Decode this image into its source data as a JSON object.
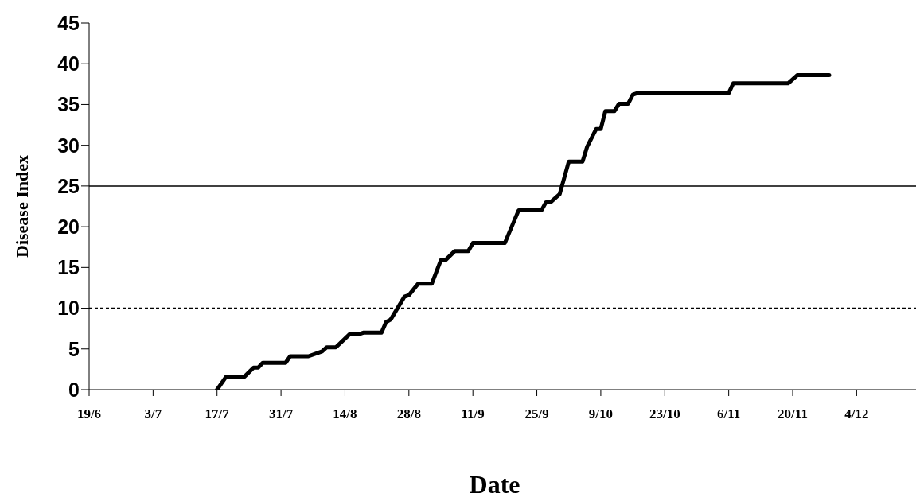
{
  "chart_data": {
    "type": "line",
    "xlabel": "Date",
    "ylabel": "Disease Index",
    "x": [
      "--07-17",
      "--07-19",
      "--07-23",
      "--07-25",
      "--07-26",
      "--07-27",
      "--08-01",
      "--08-02",
      "--08-06",
      "--08-09",
      "--08-10",
      "--08-12",
      "--08-15",
      "--08-17",
      "--08-18",
      "--08-22",
      "--08-23",
      "--08-24",
      "--08-27",
      "--08-28",
      "--08-30",
      "--09-02",
      "--09-04",
      "--09-05",
      "--09-07",
      "--09-10",
      "--09-11",
      "--09-18",
      "--09-21",
      "--09-26",
      "--09-27",
      "--09-28",
      "--09-30",
      "--10-02",
      "--10-05",
      "--10-06",
      "--10-08",
      "--10-09",
      "--10-10",
      "--10-12",
      "--10-13",
      "--10-15",
      "--10-16",
      "--10-17",
      "--11-06",
      "--11-07",
      "--11-19",
      "--11-21",
      "--11-28"
    ],
    "series": [
      {
        "color": "#000000",
        "values": [
          0,
          1.6,
          1.6,
          2.7,
          2.7,
          3.3,
          3.3,
          4.1,
          4.1,
          4.7,
          5.2,
          5.2,
          6.8,
          6.8,
          7.0,
          7.0,
          8.3,
          8.6,
          11.4,
          11.6,
          13.0,
          13.0,
          15.9,
          15.9,
          17.0,
          17.0,
          18.0,
          18.0,
          22.0,
          22.0,
          23.0,
          23.0,
          24.0,
          28.0,
          28.0,
          29.8,
          32.0,
          32.0,
          34.2,
          34.2,
          35.1,
          35.1,
          36.2,
          36.4,
          36.4,
          37.6,
          37.6,
          38.6,
          38.6
        ]
      }
    ],
    "xlim": [
      "--06-19",
      "--12-17"
    ],
    "xticks": [
      {
        "value": "--06-19",
        "label": "19/6"
      },
      {
        "value": "--07-03",
        "label": "3/7"
      },
      {
        "value": "--07-17",
        "label": "17/7"
      },
      {
        "value": "--07-31",
        "label": "31/7"
      },
      {
        "value": "--08-14",
        "label": "14/8"
      },
      {
        "value": "--08-28",
        "label": "28/8"
      },
      {
        "value": "--09-11",
        "label": "11/9"
      },
      {
        "value": "--09-25",
        "label": "25/9"
      },
      {
        "value": "--10-09",
        "label": "9/10"
      },
      {
        "value": "--10-23",
        "label": "23/10"
      },
      {
        "value": "--11-06",
        "label": "6/11"
      },
      {
        "value": "--11-20",
        "label": "20/11"
      },
      {
        "value": "--12-04",
        "label": "4/12"
      }
    ],
    "ylim": [
      0,
      45
    ],
    "yticks": [
      0,
      5,
      10,
      15,
      20,
      25,
      30,
      35,
      40,
      45
    ],
    "ref_lines": [
      {
        "axis": "y",
        "value": 25,
        "color": "#000000",
        "line_style": "solid"
      },
      {
        "axis": "y",
        "value": 10,
        "color": "#000000",
        "line_style": "dashed"
      }
    ]
  }
}
